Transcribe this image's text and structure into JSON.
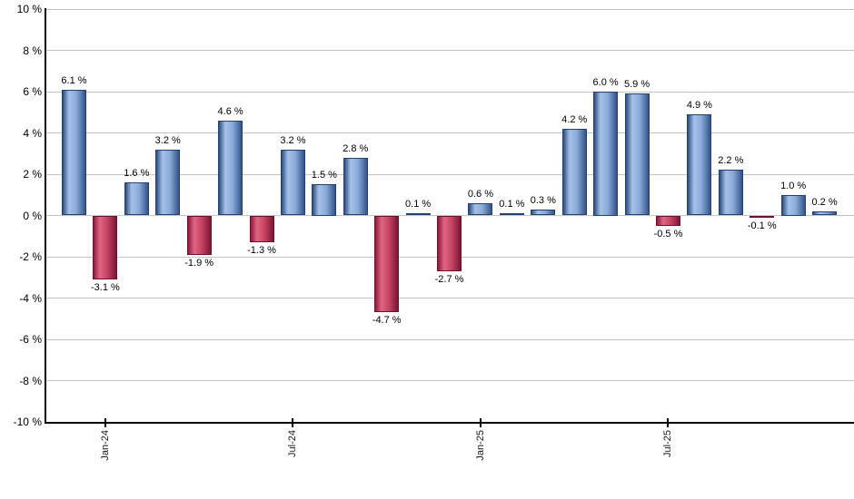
{
  "chart_data": {
    "type": "bar",
    "title": "",
    "unit": "%",
    "values": [
      6.1,
      -3.1,
      1.6,
      3.2,
      -1.9,
      4.6,
      -1.3,
      3.2,
      1.5,
      2.8,
      -4.7,
      0.1,
      -2.7,
      0.6,
      0.1,
      0.3,
      4.2,
      6.0,
      5.9,
      -0.5,
      4.9,
      2.2,
      -0.1,
      1.0,
      0.2
    ],
    "value_labels": [
      "6.1 %",
      "-3.1 %",
      "1.6 %",
      "3.2 %",
      "-1.9 %",
      "4.6 %",
      "-1.3 %",
      "3.2 %",
      "1.5 %",
      "2.8 %",
      "-4.7 %",
      "0.1 %",
      "-2.7 %",
      "0.6 %",
      "0.1 %",
      "0.3 %",
      "4.2 %",
      "6.0 %",
      "5.9 %",
      "-0.5 %",
      "4.9 %",
      "2.2 %",
      "-0.1 %",
      "1.0 %",
      "0.2 %"
    ],
    "x_ticks": [
      {
        "label": "Jan-24",
        "bar_index": 1
      },
      {
        "label": "Jul-24",
        "bar_index": 7
      },
      {
        "label": "Jan-25",
        "bar_index": 13
      },
      {
        "label": "Jul-25",
        "bar_index": 19
      }
    ],
    "y_ticks": {
      "labels": [
        "10 %",
        "8 %",
        "6 %",
        "4 %",
        "2 %",
        "0 %",
        "-2 %",
        "-4 %",
        "-6 %",
        "-8 %",
        "-10 %"
      ],
      "values": [
        10,
        8,
        6,
        4,
        2,
        0,
        -2,
        -4,
        -6,
        -8,
        -10
      ]
    },
    "ylim": [
      -10,
      10
    ],
    "grid": true,
    "legend": "none",
    "colors": {
      "positive_gradient": [
        "#2b4d7f",
        "#a6c1e8",
        "#89aad7",
        "#31538a"
      ],
      "negative_gradient": [
        "#8e1a3c",
        "#e06582",
        "#c74465",
        "#7c1533"
      ],
      "gridline": "#c4c4c4",
      "axis": "#000000",
      "label_text": "#000000"
    }
  }
}
